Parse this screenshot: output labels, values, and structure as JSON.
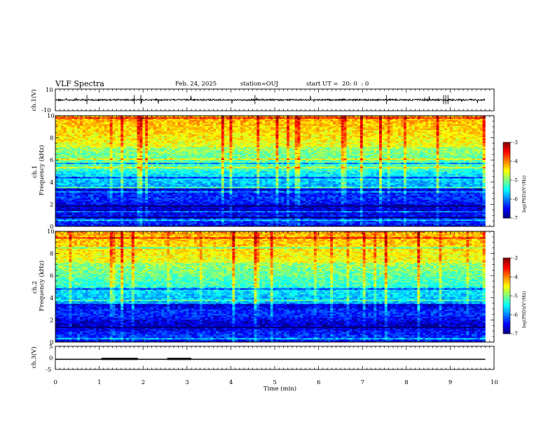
{
  "header": {
    "title": "VLF Spectra",
    "date": "Feb. 24, 2025",
    "station": "station=OUJ",
    "start": "start UT =  20: 0  : 0"
  },
  "chart_data": [
    {
      "type": "line",
      "panel": "ch1-waveform",
      "ylabel": "ch.1(V)",
      "ylim": [
        -10,
        10
      ],
      "yticks": [
        "10",
        "-10"
      ],
      "xlim": [
        0,
        10
      ],
      "description_series": [
        {
          "x": [
            0,
            9.8
          ],
          "y": [
            0,
            0
          ]
        }
      ]
    },
    {
      "type": "heatmap",
      "panel": "ch1-spectrogram",
      "ylabel": "ch.1\nFrequency (kHz)",
      "ylabel_line1": "ch.1",
      "ylabel_line2": "Frequency (kHz)",
      "ylim": [
        0,
        10
      ],
      "yticks": [
        "0",
        "2",
        "4",
        "6",
        "8",
        "10"
      ],
      "xlim": [
        0,
        10
      ],
      "data_extent_x": [
        0,
        9.8
      ],
      "colorbar": {
        "label": "log(PSD)(V²/Hz)",
        "range": [
          -7,
          -3
        ],
        "ticks": [
          "-3",
          "-4",
          "-5",
          "-6",
          "-7"
        ]
      }
    },
    {
      "type": "heatmap",
      "panel": "ch2-spectrogram",
      "ylabel_line1": "ch.2",
      "ylabel_line2": "Frequency (kHz)",
      "ylim": [
        0,
        10
      ],
      "yticks": [
        "0",
        "2",
        "4",
        "6",
        "8",
        "10"
      ],
      "xlim": [
        0,
        10
      ],
      "data_extent_x": [
        0,
        9.8
      ],
      "colorbar": {
        "label": "log(PSD)(V²/Hz)",
        "range": [
          -7,
          -3
        ],
        "ticks": [
          "-3",
          "-4",
          "-5",
          "-6",
          "-7"
        ]
      }
    },
    {
      "type": "line",
      "panel": "ch3-waveform",
      "ylabel": "ch.3(V)",
      "ylim": [
        -5,
        5
      ],
      "yticks": [
        "5",
        "0",
        "-5"
      ],
      "xlim": [
        0,
        10
      ],
      "xlabel": "Time (min)",
      "xticks": [
        "0",
        "1",
        "2",
        "3",
        "4",
        "5",
        "6",
        "7",
        "8",
        "9",
        "10"
      ],
      "series": [
        {
          "x": [
            0,
            9.8
          ],
          "y": [
            0,
            0
          ]
        }
      ],
      "pulses": [
        {
          "x": [
            1.05,
            1.88
          ],
          "y": 0.2
        },
        {
          "x": [
            2.55,
            3.1
          ],
          "y": 0.2
        }
      ]
    }
  ]
}
